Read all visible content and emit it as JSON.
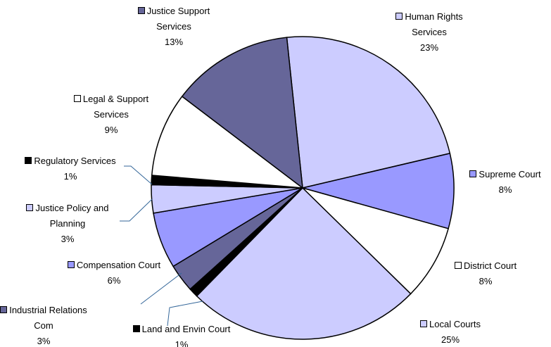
{
  "chart_data": {
    "type": "pie",
    "categories": [
      "Human Rights Services",
      "Supreme Court",
      "District Court",
      "Local Courts",
      "Land and Envin Court",
      "Industrial Relations Com",
      "Compensation Court",
      "Justice Policy and Planning",
      "Regulatory Services",
      "Legal & Support Services",
      "Justice Support Services"
    ],
    "values": [
      23,
      8,
      8,
      25,
      1,
      3,
      6,
      3,
      1,
      9,
      13
    ],
    "value_labels": [
      "23%",
      "8%",
      "8%",
      "25%",
      "1%",
      "3%",
      "6%",
      "3%",
      "1%",
      "9%",
      "13%"
    ],
    "colors": [
      "#ccccff",
      "#9999ff",
      "#ffffff",
      "#ccccff",
      "#000000",
      "#666699",
      "#9999ff",
      "#ccccff",
      "#000000",
      "#ffffff",
      "#666699"
    ]
  }
}
